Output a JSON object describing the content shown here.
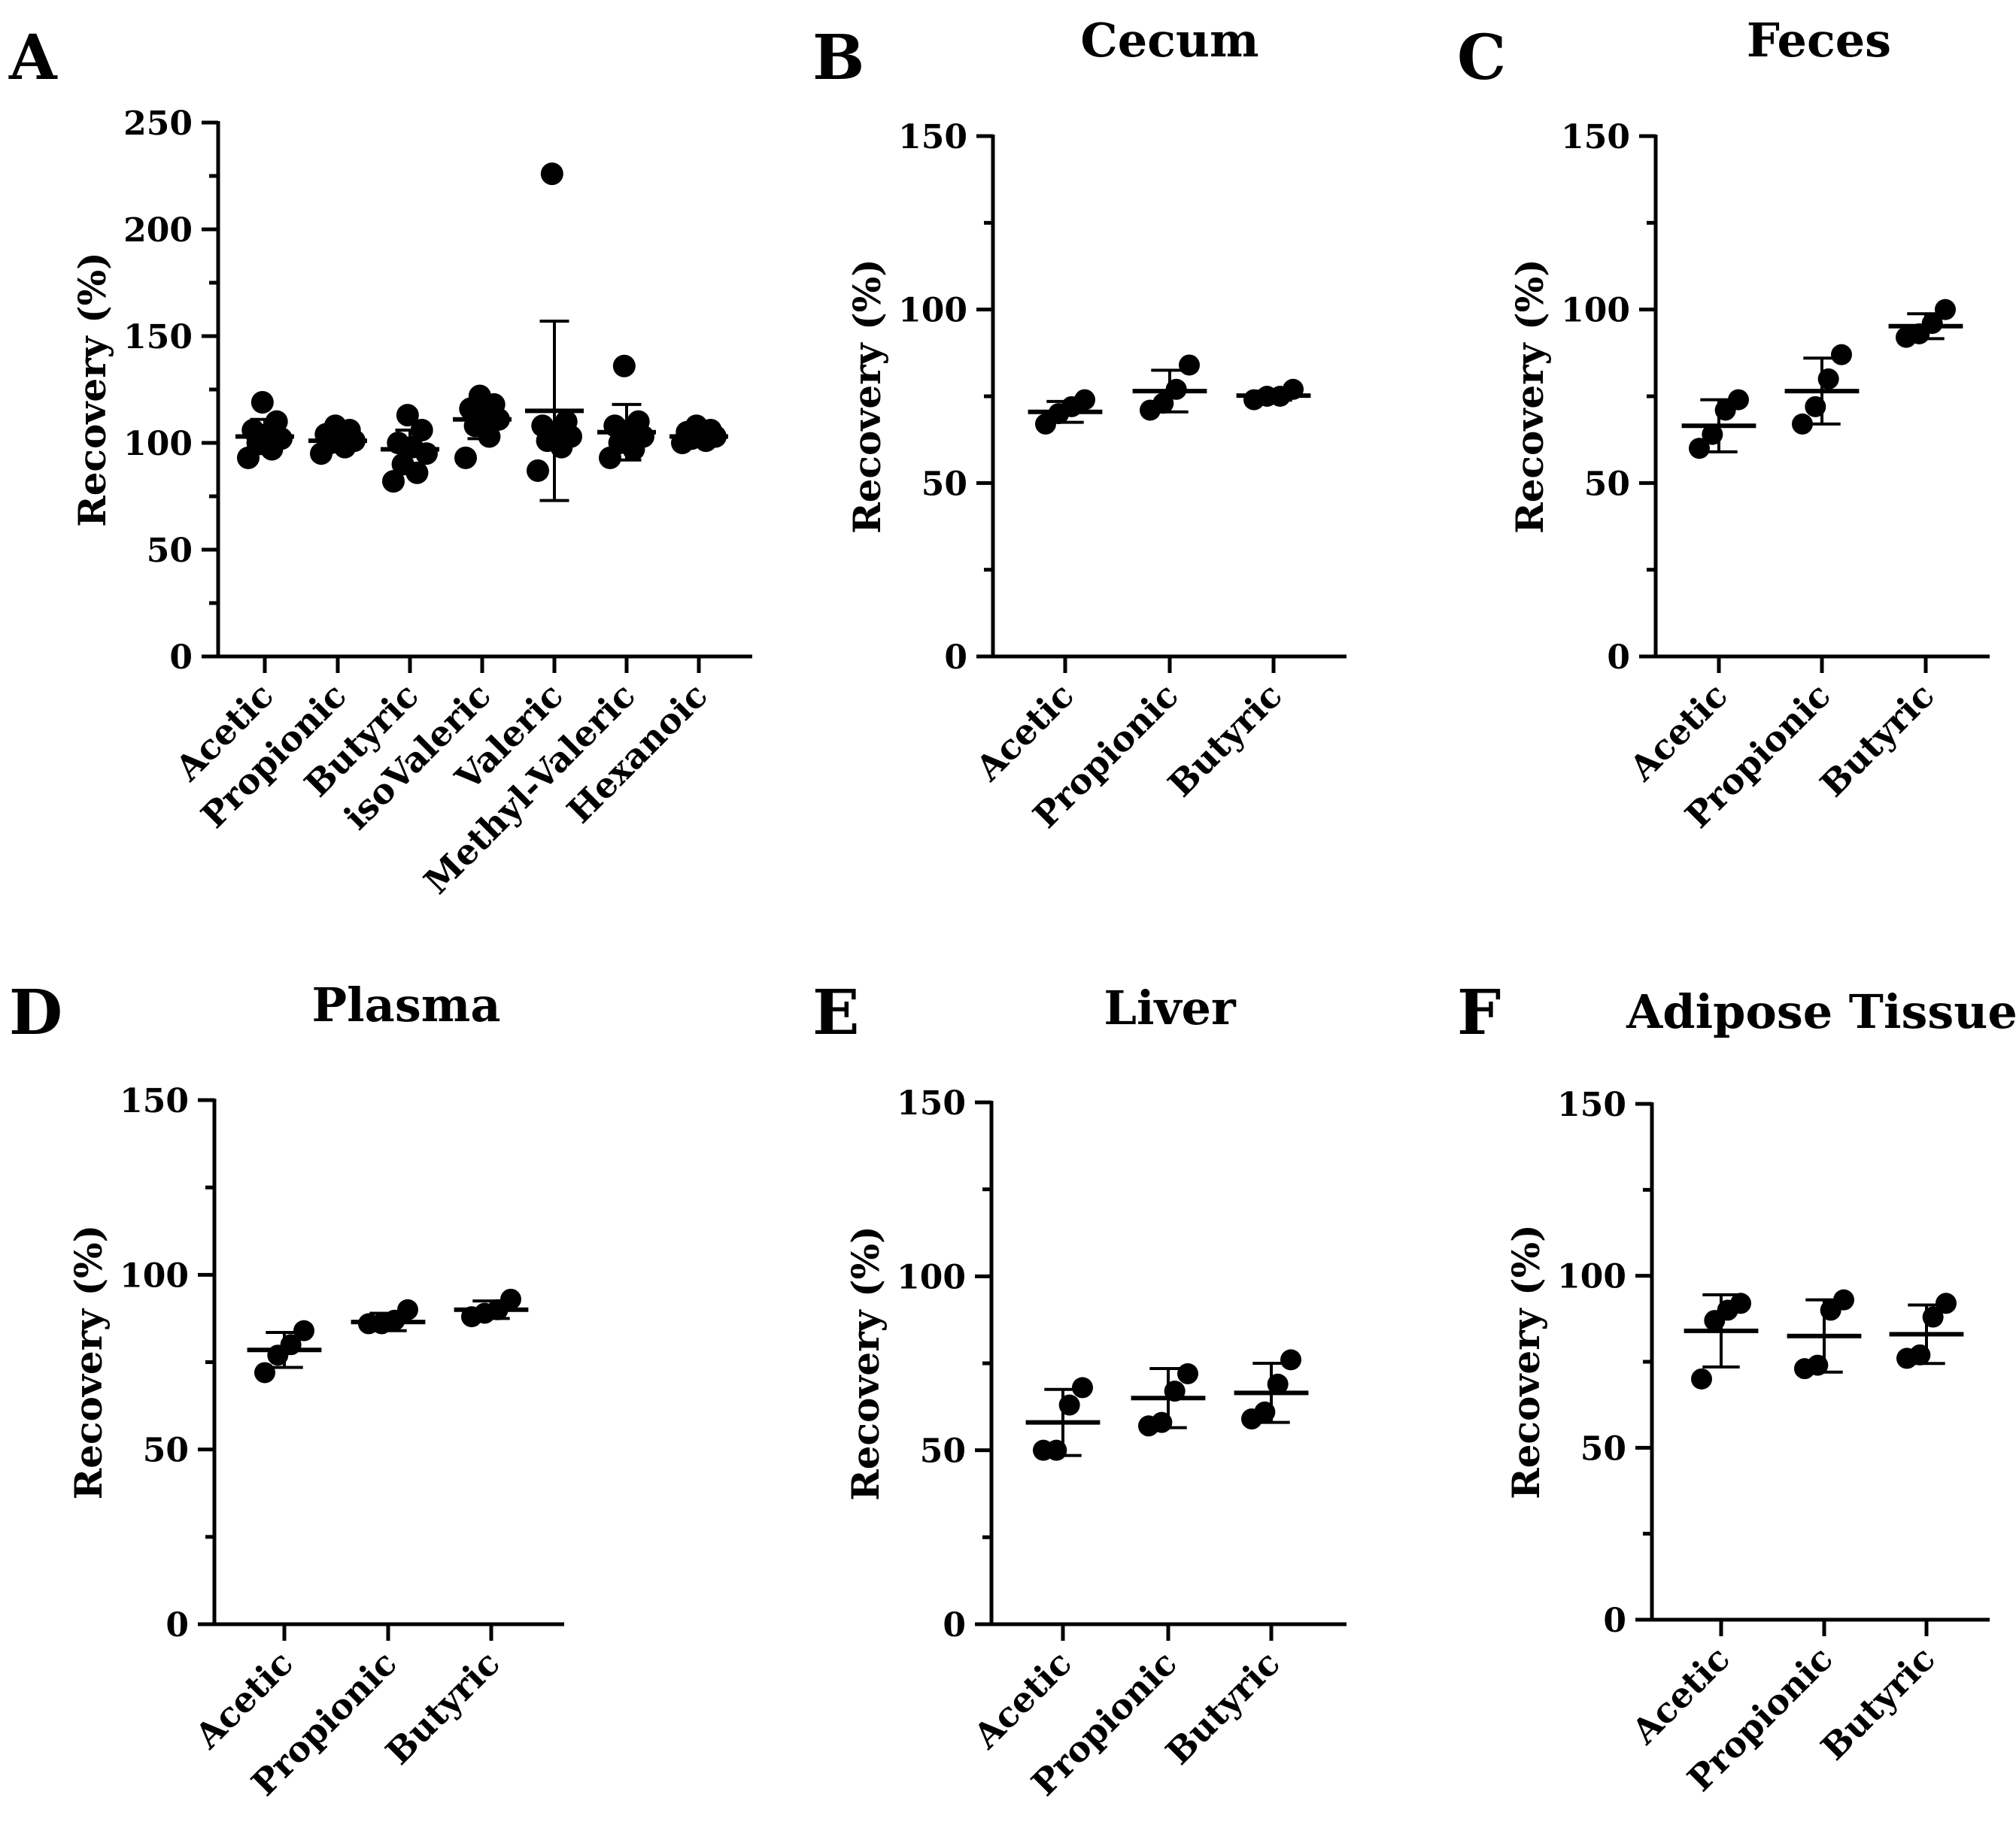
{
  "chart_data": [
    {
      "panel": "A",
      "title": "",
      "type": "scatter",
      "ylabel": "Recovery (%)",
      "ylim": [
        0,
        250
      ],
      "yticks": [
        0,
        50,
        100,
        150,
        200,
        250
      ],
      "categories": [
        "Acetic",
        "Propionic",
        "Butyric",
        "isoValeric",
        "Valeric",
        "Methyl-Valeric",
        "Hexanoic"
      ],
      "points": [
        [
          93,
          97,
          100,
          102,
          104,
          106,
          110,
          119
        ],
        [
          95,
          98,
          100,
          101,
          102,
          104,
          106,
          108
        ],
        [
          82,
          86,
          90,
          95,
          98,
          100,
          106,
          113
        ],
        [
          93,
          103,
          108,
          111,
          113,
          116,
          118,
          122
        ],
        [
          87,
          98,
          101,
          103,
          105,
          108,
          110,
          226
        ],
        [
          93,
          97,
          100,
          103,
          106,
          108,
          110,
          136
        ],
        [
          100,
          101,
          102,
          103,
          104,
          105,
          106,
          108
        ]
      ],
      "mean": [
        103,
        101,
        97,
        111,
        115,
        105,
        103
      ],
      "sd": [
        8,
        4,
        9,
        9,
        42,
        13,
        3
      ]
    },
    {
      "panel": "B",
      "title": "Cecum",
      "type": "scatter",
      "ylabel": "Recovery (%)",
      "ylim": [
        0,
        150
      ],
      "yticks": [
        0,
        50,
        100,
        150
      ],
      "categories": [
        "Acetic",
        "Propionic",
        "Butyric"
      ],
      "points": [
        [
          67,
          70,
          72,
          74
        ],
        [
          71,
          73,
          77,
          84
        ],
        [
          74,
          75,
          75,
          77
        ]
      ],
      "mean": [
        70.5,
        76.5,
        75.2
      ],
      "sd": [
        3,
        6,
        1.3
      ]
    },
    {
      "panel": "C",
      "title": "Feces",
      "type": "scatter",
      "ylabel": "Recovery (%)",
      "ylim": [
        0,
        150
      ],
      "yticks": [
        0,
        50,
        100,
        150
      ],
      "categories": [
        "Acetic",
        "Propionic",
        "Butyric"
      ],
      "points": [
        [
          60,
          64,
          71,
          74
        ],
        [
          67,
          72,
          80,
          87
        ],
        [
          92,
          93,
          96,
          100
        ]
      ],
      "mean": [
        66.5,
        76.5,
        95.2
      ],
      "sd": [
        7.5,
        9.5,
        3.6
      ]
    },
    {
      "panel": "D",
      "title": "Plasma",
      "type": "scatter",
      "ylabel": "Recovery (%)",
      "ylim": [
        0,
        150
      ],
      "yticks": [
        0,
        50,
        100,
        150
      ],
      "categories": [
        "Acetic",
        "Propionic",
        "Butyric"
      ],
      "points": [
        [
          72,
          77,
          80,
          84
        ],
        [
          86,
          86,
          87,
          90
        ],
        [
          88,
          89,
          90,
          93
        ]
      ],
      "mean": [
        78.5,
        86.5,
        90
      ],
      "sd": [
        5,
        2.5,
        2.5
      ]
    },
    {
      "panel": "E",
      "title": "Liver",
      "type": "scatter",
      "ylabel": "Recovery (%)",
      "ylim": [
        0,
        150
      ],
      "yticks": [
        0,
        50,
        100,
        150
      ],
      "categories": [
        "Acetic",
        "Propionic",
        "Butyric"
      ],
      "points": [
        [
          50,
          50,
          63,
          68
        ],
        [
          57,
          58,
          67,
          72
        ],
        [
          59,
          61,
          69,
          76
        ]
      ],
      "mean": [
        58,
        65,
        66.5
      ],
      "sd": [
        9.5,
        8.5,
        8.5
      ]
    },
    {
      "panel": "F",
      "title": "Adipose Tissue",
      "type": "scatter",
      "ylabel": "Recovery (%)",
      "ylim": [
        0,
        150
      ],
      "yticks": [
        0,
        50,
        100,
        150
      ],
      "categories": [
        "Acetic",
        "Propionic",
        "Butyric"
      ],
      "points": [
        [
          70,
          87,
          90,
          92
        ],
        [
          73,
          74,
          90,
          93
        ],
        [
          76,
          77,
          88,
          92
        ]
      ],
      "mean": [
        84,
        82.5,
        83
      ],
      "sd": [
        10.5,
        10.5,
        8.5
      ]
    }
  ]
}
